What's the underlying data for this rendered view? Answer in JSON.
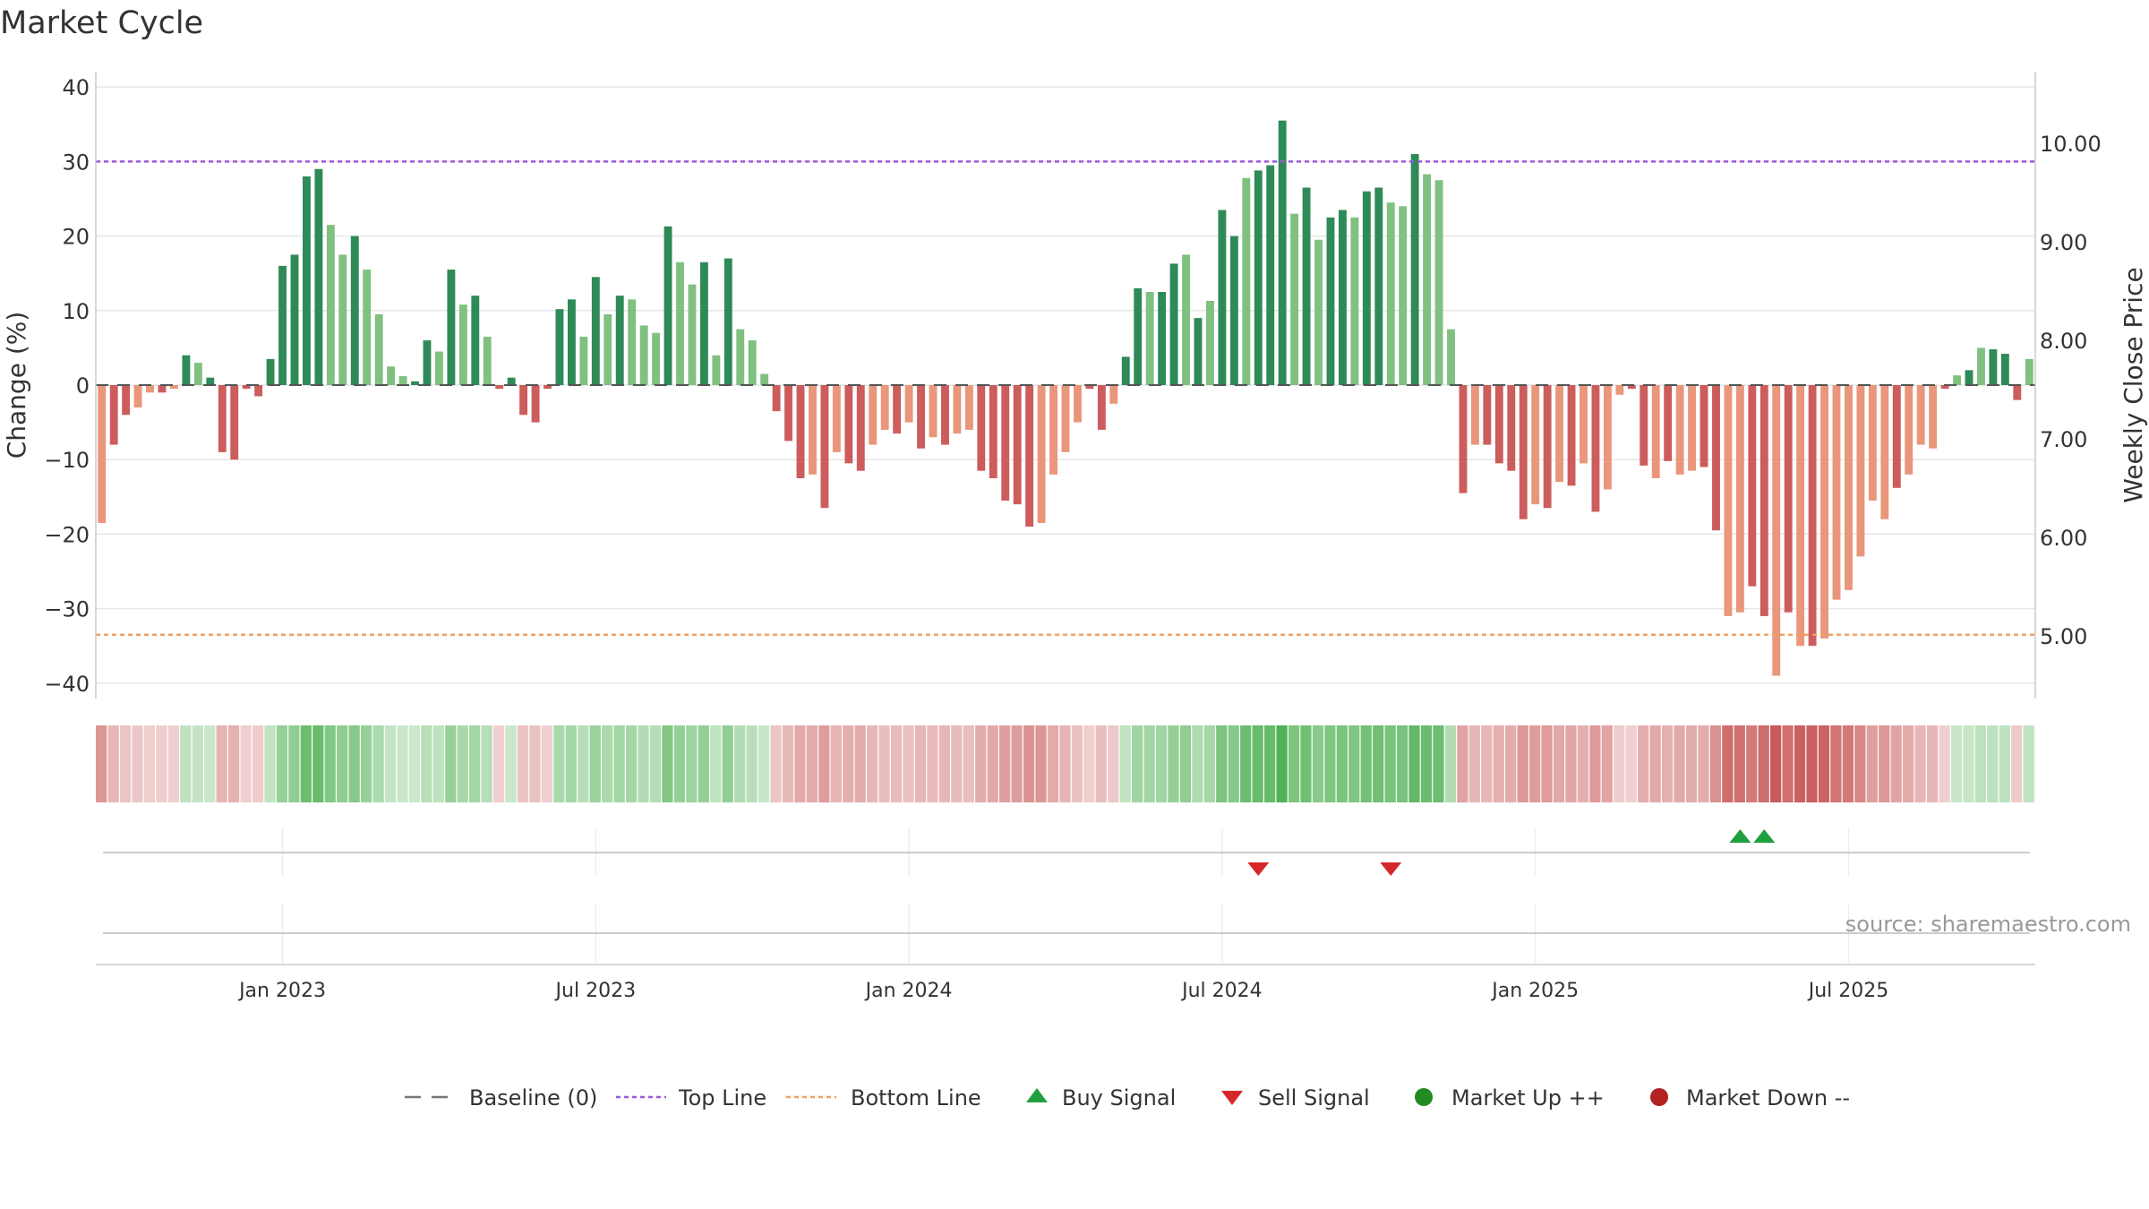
{
  "chart_data": {
    "type": "bar",
    "title": "Market Cycle",
    "ylabel": "Change (%)",
    "y2label": "Weekly Close Price",
    "ylim": [
      -42,
      42
    ],
    "y_ticks": [
      40,
      30,
      20,
      10,
      0,
      -10,
      -20,
      -30,
      -40
    ],
    "y_tick_labels": [
      "40",
      "30",
      "20",
      "10",
      "0",
      "−10",
      "−20",
      "−30",
      "−40"
    ],
    "y2_ticks": [
      10,
      9,
      8,
      7,
      6,
      5
    ],
    "y2_tick_labels": [
      "10.00",
      "9.00",
      "8.00",
      "7.00",
      "6.00",
      "5.00"
    ],
    "top_line": 30,
    "bottom_line": -33.5,
    "x_ticks": [
      {
        "index": 15,
        "label": "Jan 2023"
      },
      {
        "index": 41,
        "label": "Jul 2023"
      },
      {
        "index": 67,
        "label": "Jan 2024"
      },
      {
        "index": 93,
        "label": "Jul 2024"
      },
      {
        "index": 119,
        "label": "Jan 2025"
      },
      {
        "index": 145,
        "label": "Jul 2025"
      }
    ],
    "values": [
      -18.5,
      -8,
      -4,
      -3,
      -1,
      -1,
      -0.5,
      4,
      3,
      1,
      -9,
      -10,
      -0.5,
      -1.5,
      3.5,
      16,
      17.5,
      28,
      29,
      21.5,
      17.5,
      20,
      15.5,
      9.5,
      2.5,
      1.2,
      0.5,
      6,
      4.5,
      15.5,
      10.8,
      12,
      6.5,
      -0.5,
      1,
      -4,
      -5,
      -0.5,
      10.2,
      11.5,
      6.5,
      14.5,
      9.5,
      12,
      11.5,
      8,
      7,
      21.3,
      16.5,
      13.5,
      16.5,
      4,
      17,
      7.5,
      6,
      1.5,
      -3.5,
      -7.5,
      -12.5,
      -12,
      -16.5,
      -9,
      -10.5,
      -11.5,
      -8,
      -6,
      -6.5,
      -5,
      -8.5,
      -7,
      -8,
      -6.5,
      -6,
      -11.5,
      -12.5,
      -15.5,
      -16,
      -19,
      -18.5,
      -12,
      -9,
      -5,
      -0.5,
      -6,
      -2.5,
      3.8,
      13,
      12.5,
      12.5,
      16.3,
      17.5,
      9,
      11.3,
      23.5,
      20,
      27.8,
      28.8,
      29.5,
      35.5,
      23,
      26.5,
      19.5,
      22.5,
      23.5,
      22.5,
      26,
      26.5,
      24.5,
      24,
      31,
      28.3,
      27.5,
      7.5,
      -14.5,
      -8,
      -8,
      -10.5,
      -11.5,
      -18,
      -16,
      -16.5,
      -13,
      -13.5,
      -10.5,
      -17,
      -14,
      -1.3,
      -0.5,
      -10.8,
      -12.5,
      -10.2,
      -12,
      -11.5,
      -11,
      -19.5,
      -31,
      -30.5,
      -27,
      -31,
      -39,
      -30.5,
      -35,
      -35,
      -34,
      -28.8,
      -27.5,
      -23,
      -15.5,
      -18,
      -13.8,
      -12,
      -8,
      -8.5,
      -0.5,
      1.3,
      2,
      5,
      4.8,
      4.2,
      -2,
      3.5
    ],
    "momentum": [
      "up",
      "down",
      "down",
      "up",
      "up",
      "down",
      "up",
      "up",
      "down",
      "up",
      "down",
      "down",
      "down",
      "down",
      "up",
      "up",
      "up",
      "up",
      "up",
      "down",
      "down",
      "up",
      "down",
      "down",
      "down",
      "down",
      "up",
      "up",
      "down",
      "up",
      "down",
      "up",
      "down",
      "down",
      "up",
      "down",
      "down",
      "down",
      "up",
      "up",
      "down",
      "up",
      "down",
      "up",
      "down",
      "down",
      "down",
      "up",
      "down",
      "down",
      "up",
      "down",
      "up",
      "down",
      "down",
      "down",
      "down",
      "down",
      "down",
      "up",
      "down",
      "up",
      "down",
      "down",
      "up",
      "up",
      "down",
      "up",
      "down",
      "up",
      "down",
      "up",
      "up",
      "down",
      "down",
      "down",
      "down",
      "down",
      "up",
      "up",
      "up",
      "up",
      "down",
      "down",
      "up",
      "up",
      "up",
      "down",
      "up",
      "up",
      "down",
      "up",
      "down",
      "up",
      "up",
      "down",
      "up",
      "up",
      "up",
      "down",
      "up",
      "down",
      "up",
      "up",
      "down",
      "up",
      "up",
      "down",
      "down",
      "up",
      "down",
      "down",
      "down",
      "down",
      "up",
      "down",
      "down",
      "down",
      "down",
      "up",
      "down",
      "up",
      "down",
      "up",
      "down",
      "up",
      "up",
      "down",
      "down",
      "up",
      "down",
      "up",
      "up",
      "down",
      "down",
      "up",
      "up",
      "down",
      "down",
      "up",
      "down",
      "up",
      "down",
      "up",
      "up",
      "up",
      "up",
      "up",
      "up",
      "down",
      "up",
      "up",
      "up",
      "down",
      "down",
      "up",
      "down",
      "up",
      "up",
      "down",
      "down"
    ],
    "buy_signal_indices": [
      136,
      138
    ],
    "sell_signal_indices": [
      96,
      107
    ],
    "legend": [
      {
        "key": "baseline",
        "label": "Baseline (0)"
      },
      {
        "key": "top",
        "label": "Top Line"
      },
      {
        "key": "bottom",
        "label": "Bottom Line"
      },
      {
        "key": "buy",
        "label": "Buy Signal"
      },
      {
        "key": "sell",
        "label": "Sell Signal"
      },
      {
        "key": "up",
        "label": "Market Up ++"
      },
      {
        "key": "down",
        "label": "Market Down --"
      }
    ],
    "legend_position": "bottom",
    "source": "source: sharemaestro.com",
    "colors": {
      "pos_strong": "#2e8a57",
      "pos_light": "#80c080",
      "neg_strong": "#cd5c5c",
      "neg_light": "#e9967a",
      "top_line": "#9b59d6",
      "bottom_line": "#f0a060",
      "buy": "#20a040",
      "sell": "#d62728",
      "market_up": "#228b22",
      "market_down": "#b22222",
      "baseline": "#777777",
      "grid": "#e6e6e6",
      "axis": "#cccccc",
      "text": "#333333"
    }
  }
}
